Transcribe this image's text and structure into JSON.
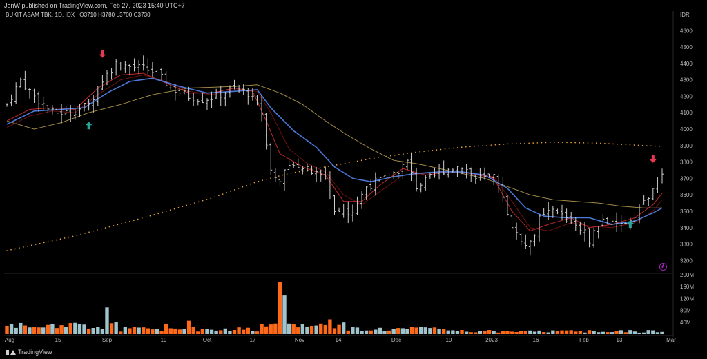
{
  "header": {
    "publisher": "JonW published on TradingView.com, Feb 27, 2023 15:40 UTC+7"
  },
  "symbol": {
    "name": "BUKIT ASAM TBK, 1D, IDX",
    "o_label": "O",
    "o": "3710",
    "h_label": "H",
    "h": "3780",
    "l_label": "L",
    "l": "3700",
    "c_label": "C",
    "c": "3730"
  },
  "currency": "IDR",
  "footer": {
    "brand": "TradingView"
  },
  "colors": {
    "up_arrow": "#26a69a",
    "down_arrow": "#e53950",
    "vol_up": "#9fc4cc",
    "vol_down": "#ff6a1a",
    "ma_fast": "#c0282b",
    "ma_mid": "#6e1010",
    "ma_blue": "#4a78d8",
    "ma_slow": "#a08a48",
    "ma_dotted": "#e8a23a"
  },
  "chart_data": {
    "type": "ohlc",
    "price_axis": {
      "ticks": [
        4600,
        4500,
        4400,
        4300,
        4200,
        4100,
        4000,
        3900,
        3800,
        3700,
        3600,
        3500,
        3400,
        3300,
        3200
      ],
      "ylim": [
        3130,
        4660
      ]
    },
    "volume_axis": {
      "ticks": [
        "200M",
        "160M",
        "120M",
        "80M",
        "40M"
      ],
      "ylim": [
        0,
        200
      ]
    },
    "x_axis_labels": [
      "Aug",
      "15",
      "Sep",
      "19",
      "Oct",
      "17",
      "Nov",
      "14",
      "Dec",
      "19",
      "2023",
      "16",
      "Feb",
      "13",
      "Mar"
    ],
    "close_path": [
      [
        0,
        4150
      ],
      [
        3,
        4300
      ],
      [
        6,
        4200
      ],
      [
        10,
        4100
      ],
      [
        14,
        4100
      ],
      [
        18,
        4150
      ],
      [
        21,
        4300
      ],
      [
        24,
        4400
      ],
      [
        27,
        4380
      ],
      [
        30,
        4370
      ],
      [
        33,
        4340
      ],
      [
        36,
        4250
      ],
      [
        40,
        4200
      ],
      [
        43,
        4180
      ],
      [
        46,
        4200
      ],
      [
        50,
        4250
      ],
      [
        53,
        4220
      ],
      [
        56,
        4100
      ],
      [
        58,
        3750
      ],
      [
        60,
        3700
      ],
      [
        63,
        3800
      ],
      [
        66,
        3750
      ],
      [
        70,
        3700
      ],
      [
        72,
        3500
      ],
      [
        76,
        3500
      ],
      [
        79,
        3650
      ],
      [
        83,
        3700
      ],
      [
        86,
        3750
      ],
      [
        88,
        3800
      ],
      [
        90,
        3650
      ],
      [
        93,
        3700
      ],
      [
        96,
        3750
      ],
      [
        100,
        3780
      ],
      [
        103,
        3700
      ],
      [
        107,
        3700
      ],
      [
        110,
        3500
      ],
      [
        112,
        3350
      ],
      [
        115,
        3300
      ],
      [
        117,
        3450
      ],
      [
        120,
        3500
      ],
      [
        123,
        3460
      ],
      [
        126,
        3400
      ],
      [
        128,
        3330
      ],
      [
        131,
        3450
      ],
      [
        134,
        3400
      ],
      [
        137,
        3450
      ],
      [
        140,
        3560
      ],
      [
        143,
        3650
      ],
      [
        144,
        3730
      ]
    ],
    "ma_fast_path": [
      [
        0,
        4050
      ],
      [
        5,
        4120
      ],
      [
        10,
        4130
      ],
      [
        15,
        4120
      ],
      [
        20,
        4250
      ],
      [
        25,
        4330
      ],
      [
        30,
        4340
      ],
      [
        35,
        4280
      ],
      [
        40,
        4220
      ],
      [
        45,
        4220
      ],
      [
        50,
        4250
      ],
      [
        54,
        4230
      ],
      [
        57,
        4050
      ],
      [
        60,
        3850
      ],
      [
        65,
        3770
      ],
      [
        70,
        3720
      ],
      [
        74,
        3560
      ],
      [
        78,
        3560
      ],
      [
        82,
        3660
      ],
      [
        87,
        3760
      ],
      [
        92,
        3720
      ],
      [
        97,
        3740
      ],
      [
        102,
        3730
      ],
      [
        107,
        3700
      ],
      [
        111,
        3500
      ],
      [
        115,
        3380
      ],
      [
        119,
        3420
      ],
      [
        124,
        3460
      ],
      [
        128,
        3400
      ],
      [
        133,
        3420
      ],
      [
        138,
        3460
      ],
      [
        142,
        3540
      ],
      [
        144,
        3610
      ]
    ],
    "ma_mid_path": [
      [
        0,
        4010
      ],
      [
        5,
        4080
      ],
      [
        10,
        4110
      ],
      [
        15,
        4100
      ],
      [
        20,
        4210
      ],
      [
        25,
        4300
      ],
      [
        30,
        4330
      ],
      [
        35,
        4290
      ],
      [
        40,
        4230
      ],
      [
        45,
        4210
      ],
      [
        50,
        4240
      ],
      [
        55,
        4230
      ],
      [
        58,
        4100
      ],
      [
        62,
        3880
      ],
      [
        66,
        3790
      ],
      [
        70,
        3740
      ],
      [
        74,
        3600
      ],
      [
        78,
        3540
      ],
      [
        82,
        3620
      ],
      [
        87,
        3720
      ],
      [
        92,
        3730
      ],
      [
        97,
        3740
      ],
      [
        102,
        3730
      ],
      [
        107,
        3710
      ],
      [
        111,
        3560
      ],
      [
        115,
        3400
      ],
      [
        119,
        3380
      ],
      [
        124,
        3430
      ],
      [
        128,
        3410
      ],
      [
        133,
        3400
      ],
      [
        138,
        3430
      ],
      [
        142,
        3500
      ],
      [
        144,
        3570
      ]
    ],
    "ma_blue_path": [
      [
        0,
        4030
      ],
      [
        6,
        4110
      ],
      [
        12,
        4120
      ],
      [
        17,
        4130
      ],
      [
        22,
        4220
      ],
      [
        27,
        4290
      ],
      [
        32,
        4310
      ],
      [
        38,
        4260
      ],
      [
        44,
        4220
      ],
      [
        50,
        4230
      ],
      [
        55,
        4240
      ],
      [
        58,
        4130
      ],
      [
        63,
        3990
      ],
      [
        68,
        3890
      ],
      [
        72,
        3770
      ],
      [
        76,
        3700
      ],
      [
        80,
        3680
      ],
      [
        85,
        3710
      ],
      [
        90,
        3730
      ],
      [
        95,
        3740
      ],
      [
        100,
        3740
      ],
      [
        105,
        3720
      ],
      [
        110,
        3640
      ],
      [
        114,
        3520
      ],
      [
        118,
        3470
      ],
      [
        123,
        3460
      ],
      [
        128,
        3460
      ],
      [
        133,
        3420
      ],
      [
        138,
        3440
      ],
      [
        142,
        3490
      ],
      [
        144,
        3520
      ]
    ],
    "ma_slow_path": [
      [
        0,
        4050
      ],
      [
        6,
        4000
      ],
      [
        12,
        4040
      ],
      [
        18,
        4100
      ],
      [
        25,
        4150
      ],
      [
        32,
        4210
      ],
      [
        40,
        4250
      ],
      [
        50,
        4260
      ],
      [
        55,
        4270
      ],
      [
        60,
        4220
      ],
      [
        65,
        4150
      ],
      [
        70,
        4050
      ],
      [
        75,
        3960
      ],
      [
        80,
        3880
      ],
      [
        85,
        3810
      ],
      [
        90,
        3790
      ],
      [
        95,
        3760
      ],
      [
        100,
        3730
      ],
      [
        105,
        3700
      ],
      [
        110,
        3650
      ],
      [
        115,
        3600
      ],
      [
        120,
        3570
      ],
      [
        125,
        3560
      ],
      [
        130,
        3550
      ],
      [
        135,
        3530
      ],
      [
        140,
        3520
      ],
      [
        144,
        3520
      ]
    ],
    "ma_dotted_path": [
      [
        0,
        3260
      ],
      [
        15,
        3350
      ],
      [
        30,
        3460
      ],
      [
        45,
        3580
      ],
      [
        55,
        3680
      ],
      [
        62,
        3730
      ],
      [
        70,
        3770
      ],
      [
        80,
        3820
      ],
      [
        90,
        3860
      ],
      [
        100,
        3890
      ],
      [
        110,
        3910
      ],
      [
        120,
        3920
      ],
      [
        130,
        3915
      ],
      [
        140,
        3900
      ],
      [
        144,
        3895
      ]
    ],
    "arrows": [
      {
        "type": "down",
        "bar": 21,
        "price": 4460
      },
      {
        "type": "up",
        "bar": 18,
        "price": 4020
      },
      {
        "type": "up",
        "bar": 137,
        "price": 3420
      },
      {
        "type": "down",
        "bar": 142,
        "price": 3820
      }
    ]
  }
}
